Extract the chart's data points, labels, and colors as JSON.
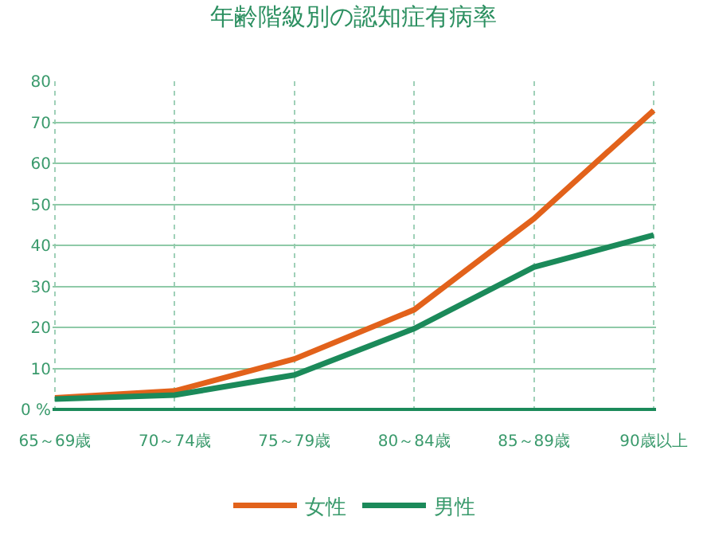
{
  "chart_data": {
    "type": "line",
    "title": "年齢階級別の認知症有病率",
    "categories": [
      "65～69歳",
      "70～74歳",
      "75～79歳",
      "80～84歳",
      "85～89歳",
      "90歳以上"
    ],
    "series": [
      {
        "name": "女性",
        "color": "#e2621b",
        "values": [
          2.8,
          4.5,
          12.3,
          24.3,
          46.5,
          72.9
        ]
      },
      {
        "name": "男性",
        "color": "#1b8a5a",
        "values": [
          2.5,
          3.5,
          8.4,
          19.7,
          34.7,
          42.5
        ]
      }
    ],
    "ylim": [
      0,
      80
    ],
    "yticks": [
      {
        "value": 0,
        "label": "0 %"
      },
      10,
      20,
      30,
      40,
      50,
      60,
      70,
      80
    ],
    "grid": true,
    "legend": "bottom",
    "marker": "none",
    "line_style": "solid"
  }
}
